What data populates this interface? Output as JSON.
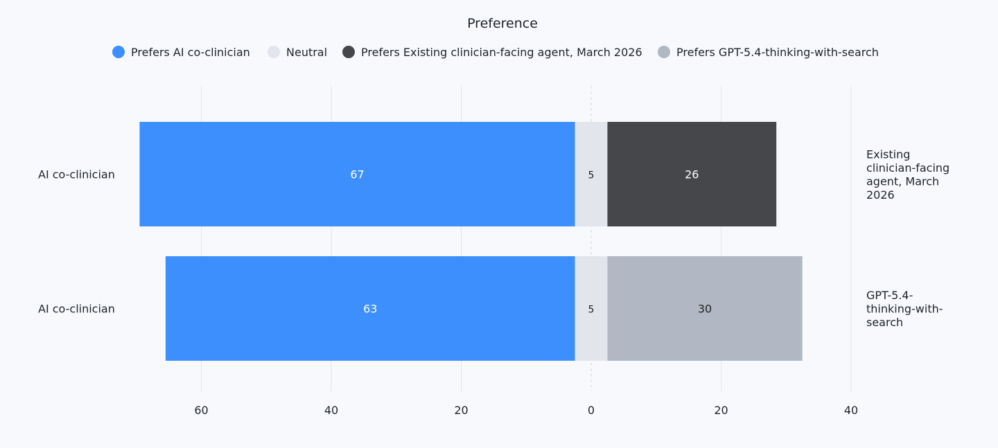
{
  "chart_data": {
    "type": "bar",
    "orientation": "horizontal-diverging",
    "title": "Preference",
    "legend": [
      {
        "label": "Prefers AI co-clinician",
        "color": "#3d8ffd"
      },
      {
        "label": "Neutral",
        "color": "#e2e6ec"
      },
      {
        "label": "Prefers Existing clinician-facing agent, March 2026",
        "color": "#46474b"
      },
      {
        "label": "Prefers GPT-5.4-thinking-with-search",
        "color": "#b1b8c3"
      }
    ],
    "legend_position": "top-center",
    "xlim": [
      -60,
      40
    ],
    "x_tick_values": [
      -60,
      -40,
      -20,
      0,
      20,
      40
    ],
    "x_tick_labels": [
      "60",
      "40",
      "20",
      "0",
      "20",
      "40"
    ],
    "grid": true,
    "rows": [
      {
        "left_label": "AI co-clinician",
        "right_label": "Existing clinician-facing agent, March 2026",
        "right_label_lines": [
          "Existing",
          "clinician-facing",
          "agent, March",
          "2026"
        ],
        "left_value": 67,
        "neutral_value": 5,
        "right_value": 26,
        "left_color": "#3d8ffd",
        "neutral_color": "#e2e6ec",
        "right_color": "#46474b",
        "right_text_color": "#ffffff"
      },
      {
        "left_label": "AI co-clinician",
        "right_label": "GPT-5.4-thinking-with-search",
        "right_label_lines": [
          "GPT-5.4-",
          "thinking-with-",
          "search"
        ],
        "left_value": 63,
        "neutral_value": 5,
        "right_value": 30,
        "left_color": "#3d8ffd",
        "neutral_color": "#e2e6ec",
        "right_color": "#b1b8c3",
        "right_text_color": "#1f2328"
      }
    ]
  }
}
